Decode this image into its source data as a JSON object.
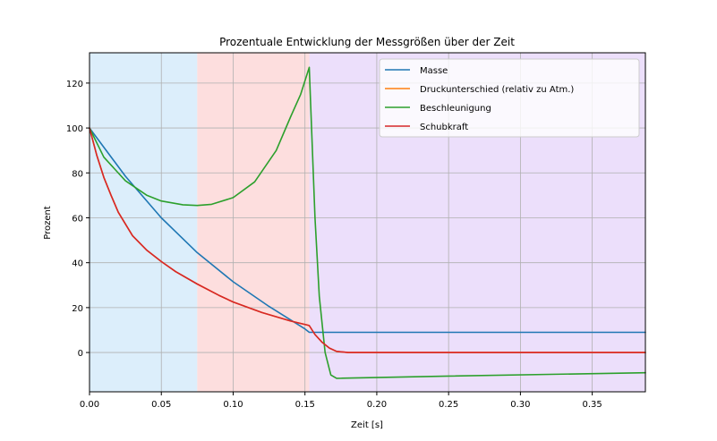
{
  "chart_data": {
    "type": "line",
    "title": "Prozentuale Entwicklung der Messgrößen über der Zeit",
    "xlabel": "Zeit [s]",
    "ylabel": "Prozent",
    "xlim": [
      0.0,
      0.387
    ],
    "ylim": [
      -17.5,
      133.5
    ],
    "x_ticks": [
      0.0,
      0.05,
      0.1,
      0.15,
      0.2,
      0.25,
      0.3,
      0.35
    ],
    "x_tick_labels": [
      "0.00",
      "0.05",
      "0.10",
      "0.15",
      "0.20",
      "0.25",
      "0.30",
      "0.35"
    ],
    "y_ticks": [
      0,
      20,
      40,
      60,
      80,
      100,
      120
    ],
    "y_tick_labels": [
      "0",
      "20",
      "40",
      "60",
      "80",
      "100",
      "120"
    ],
    "grid": true,
    "legend_position": "top-right",
    "phases": [
      {
        "x_start": 0.0,
        "x_end": 0.075,
        "color": "#dceefb"
      },
      {
        "x_start": 0.075,
        "x_end": 0.153,
        "color": "#fddede"
      },
      {
        "x_start": 0.153,
        "x_end": 0.387,
        "color": "#ecdffb"
      }
    ],
    "series": [
      {
        "name": "Masse",
        "color": "#1f77b4",
        "x": [
          0.0,
          0.025,
          0.05,
          0.075,
          0.1,
          0.125,
          0.15,
          0.153,
          0.16,
          0.387
        ],
        "y": [
          100,
          78.5,
          60,
          44.5,
          31.5,
          20.5,
          10.5,
          9.0,
          9.0,
          9.0
        ]
      },
      {
        "name": "Druckunterschied (relativ zu Atm.)",
        "color": "#ff7f0e",
        "x": [
          0.0,
          0.005,
          0.01,
          0.015,
          0.02,
          0.03,
          0.04,
          0.05,
          0.06,
          0.075,
          0.09,
          0.1,
          0.12,
          0.14,
          0.152,
          0.153,
          0.157,
          0.162,
          0.167,
          0.172,
          0.18,
          0.387
        ],
        "y": [
          100,
          88,
          78,
          70,
          62.5,
          52,
          45.5,
          40.5,
          36,
          30.5,
          25.5,
          22.5,
          17.8,
          14,
          12.2,
          12,
          8,
          4.5,
          2,
          0.5,
          0,
          0
        ]
      },
      {
        "name": "Beschleunigung",
        "color": "#2ca02c",
        "x": [
          0.0,
          0.01,
          0.025,
          0.04,
          0.05,
          0.065,
          0.075,
          0.085,
          0.1,
          0.115,
          0.13,
          0.14,
          0.147,
          0.153,
          0.154,
          0.157,
          0.16,
          0.164,
          0.168,
          0.172,
          0.25,
          0.387
        ],
        "y": [
          100,
          87,
          76.5,
          70,
          67.5,
          65.8,
          65.5,
          66,
          69,
          76,
          90,
          105,
          115,
          127,
          110,
          60,
          25,
          0,
          -10,
          -11.5,
          -10.5,
          -9
        ]
      },
      {
        "name": "Schubkraft",
        "color": "#d62728",
        "x": [
          0.0,
          0.005,
          0.01,
          0.015,
          0.02,
          0.03,
          0.04,
          0.05,
          0.06,
          0.075,
          0.09,
          0.1,
          0.12,
          0.14,
          0.152,
          0.153,
          0.157,
          0.162,
          0.167,
          0.172,
          0.18,
          0.387
        ],
        "y": [
          100,
          88,
          78,
          70,
          62.5,
          52,
          45.5,
          40.5,
          36,
          30.5,
          25.5,
          22.5,
          17.8,
          14,
          12.2,
          12,
          8,
          4.5,
          2,
          0.5,
          0,
          0
        ]
      }
    ]
  }
}
